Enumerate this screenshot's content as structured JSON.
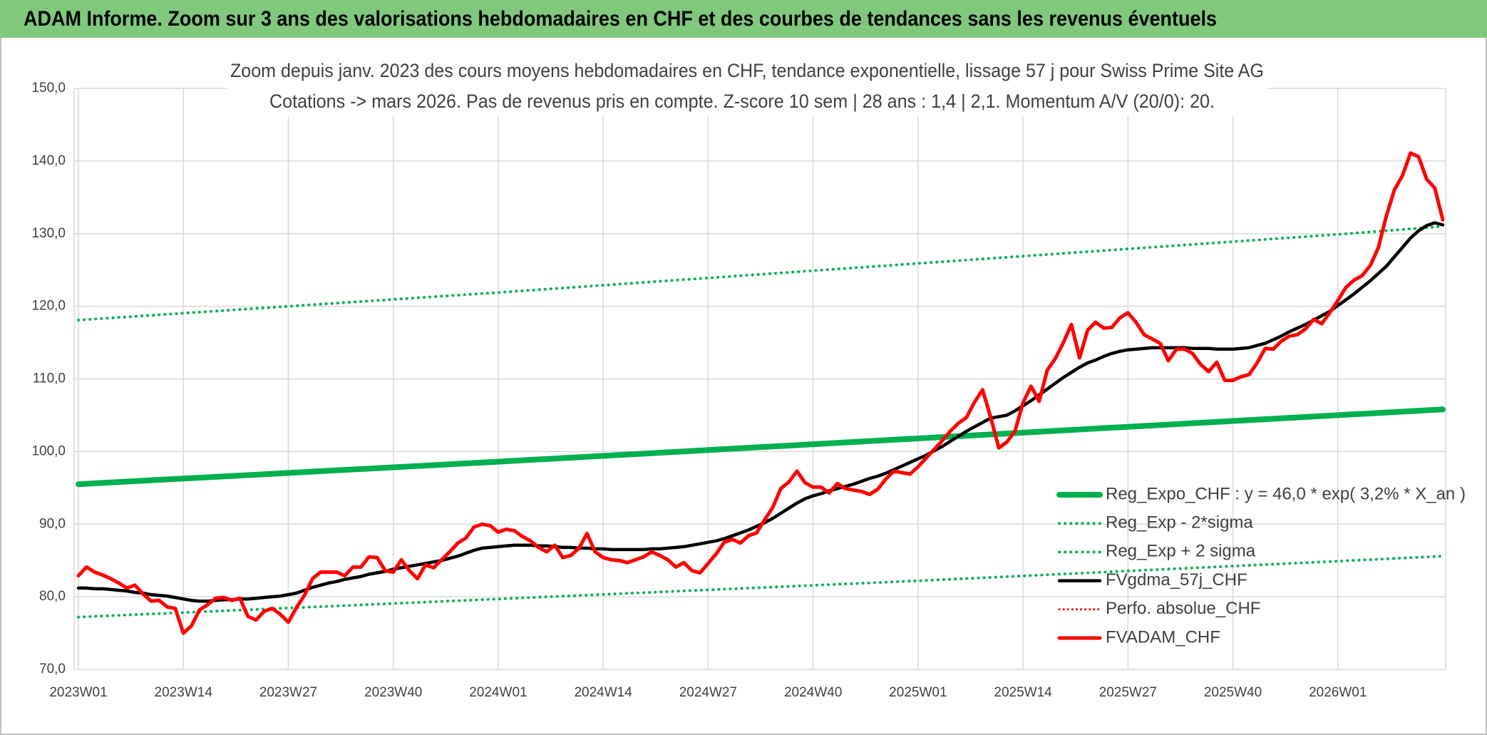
{
  "title": "ADAM Informe. Zoom sur 3 ans des valorisations hebdomadaires en CHF et des courbes de tendances sans les revenus éventuels",
  "chart_data": {
    "type": "line",
    "subtitle": [
      "Zoom depuis janv. 2023 des cours moyens hebdomadaires en CHF, tendance exponentielle, lissage 57 j pour Swiss Prime Site AG",
      "Cotations -> mars 2026. Pas de revenus pris en compte. Z-score 10 sem | 28 ans : 1,4 | 2,1. Momentum A/V (20/0): 20."
    ],
    "categories": [
      "2023W01",
      "2023W02",
      "2023W03",
      "2023W04",
      "2023W05",
      "2023W06",
      "2023W07",
      "2023W08",
      "2023W09",
      "2023W10",
      "2023W11",
      "2023W12",
      "2023W13",
      "2023W14",
      "2023W15",
      "2023W16",
      "2023W17",
      "2023W18",
      "2023W19",
      "2023W20",
      "2023W21",
      "2023W22",
      "2023W23",
      "2023W24",
      "2023W25",
      "2023W26",
      "2023W27",
      "2023W28",
      "2023W29",
      "2023W30",
      "2023W31",
      "2023W32",
      "2023W33",
      "2023W34",
      "2023W35",
      "2023W36",
      "2023W37",
      "2023W38",
      "2023W39",
      "2023W40",
      "2023W41",
      "2023W42",
      "2023W43",
      "2023W44",
      "2023W45",
      "2023W46",
      "2023W47",
      "2023W48",
      "2023W49",
      "2023W50",
      "2023W51",
      "2023W52",
      "2024W01",
      "2024W02",
      "2024W03",
      "2024W04",
      "2024W05",
      "2024W06",
      "2024W07",
      "2024W08",
      "2024W09",
      "2024W10",
      "2024W11",
      "2024W12",
      "2024W13",
      "2024W14",
      "2024W15",
      "2024W16",
      "2024W17",
      "2024W18",
      "2024W19",
      "2024W20",
      "2024W21",
      "2024W22",
      "2024W23",
      "2024W24",
      "2024W25",
      "2024W26",
      "2024W27",
      "2024W28",
      "2024W29",
      "2024W30",
      "2024W31",
      "2024W32",
      "2024W33",
      "2024W34",
      "2024W35",
      "2024W36",
      "2024W37",
      "2024W38",
      "2024W39",
      "2024W40",
      "2024W41",
      "2024W42",
      "2024W43",
      "2024W44",
      "2024W45",
      "2024W46",
      "2024W47",
      "2024W48",
      "2024W49",
      "2024W50",
      "2024W51",
      "2024W52",
      "2025W01",
      "2025W02",
      "2025W03",
      "2025W04",
      "2025W05",
      "2025W06",
      "2025W07",
      "2025W08",
      "2025W09",
      "2025W10",
      "2025W11",
      "2025W12",
      "2025W13",
      "2025W14",
      "2025W15",
      "2025W16",
      "2025W17",
      "2025W18",
      "2025W19",
      "2025W20",
      "2025W21",
      "2025W22",
      "2025W23",
      "2025W24",
      "2025W25",
      "2025W26",
      "2025W27",
      "2025W28",
      "2025W29",
      "2025W30",
      "2025W31",
      "2025W32",
      "2025W33",
      "2025W34",
      "2025W35",
      "2025W36",
      "2025W37",
      "2025W38",
      "2025W39",
      "2025W40",
      "2025W41",
      "2025W42",
      "2025W43",
      "2025W44",
      "2025W45",
      "2025W46",
      "2025W47",
      "2025W48",
      "2025W49",
      "2025W50",
      "2025W51",
      "2025W52",
      "2026W01",
      "2026W02",
      "2026W03",
      "2026W04",
      "2026W05",
      "2026W06",
      "2026W07",
      "2026W08",
      "2026W09",
      "2026W10",
      "2026W11",
      "2026W12",
      "2026W13",
      "2026W14"
    ],
    "xticks": [
      "2023W01",
      "2023W14",
      "2023W27",
      "2023W40",
      "2024W01",
      "2024W14",
      "2024W27",
      "2024W40",
      "2025W01",
      "2025W14",
      "2025W27",
      "2025W40",
      "2026W01"
    ],
    "ylim": [
      70,
      150
    ],
    "yticks": [
      {
        "value": 70,
        "label": "70,0"
      },
      {
        "value": 80,
        "label": "80,0"
      },
      {
        "value": 90,
        "label": "90,0"
      },
      {
        "value": 100,
        "label": "100,0"
      },
      {
        "value": 110,
        "label": "110,0"
      },
      {
        "value": 120,
        "label": "120,0"
      },
      {
        "value": 130,
        "label": "130,0"
      },
      {
        "value": 140,
        "label": "140,0"
      },
      {
        "value": 150,
        "label": "150,0"
      }
    ],
    "grid": true,
    "legend": "lower-right",
    "series": [
      {
        "name": "Reg_Expo_CHF : y = 46,0 * exp( 3,2% *  X_an )",
        "color": "#00b050",
        "width": 8,
        "dotted": false,
        "x": [
          "2023W01",
          "2024W01",
          "2025W01",
          "2026W01",
          "2026W14"
        ],
        "values": [
          95.5,
          98.6,
          101.8,
          105.0,
          105.8
        ]
      },
      {
        "name": "Reg_Exp - 2*sigma",
        "color": "#00b050",
        "width": 4,
        "dotted": true,
        "x": [
          "2023W01",
          "2024W01",
          "2025W01",
          "2026W01",
          "2026W14"
        ],
        "values": [
          77.2,
          79.7,
          82.2,
          84.9,
          85.6
        ]
      },
      {
        "name": "Reg_Exp + 2 sigma",
        "color": "#00b050",
        "width": 4,
        "dotted": true,
        "x": [
          "2023W01",
          "2024W01",
          "2025W01",
          "2026W01",
          "2026W14"
        ],
        "values": [
          118.1,
          121.9,
          125.9,
          129.9,
          131.0
        ]
      },
      {
        "name": "FVgdma_57j_CHF",
        "color": "#000000",
        "width": 4.5,
        "dotted": false,
        "values": [
          81.2,
          81.2,
          81.1,
          81.1,
          81.0,
          80.9,
          80.8,
          80.6,
          80.5,
          80.3,
          80.2,
          80.1,
          79.9,
          79.7,
          79.5,
          79.4,
          79.4,
          79.5,
          79.6,
          79.6,
          79.7,
          79.7,
          79.8,
          79.9,
          80.0,
          80.1,
          80.3,
          80.5,
          80.9,
          81.3,
          81.6,
          81.9,
          82.1,
          82.4,
          82.6,
          82.8,
          83.1,
          83.3,
          83.5,
          83.8,
          84.0,
          84.2,
          84.4,
          84.6,
          84.8,
          85.0,
          85.3,
          85.6,
          86.0,
          86.4,
          86.7,
          86.8,
          86.9,
          87.0,
          87.1,
          87.1,
          87.1,
          87.0,
          87.0,
          86.9,
          86.8,
          86.8,
          86.7,
          86.7,
          86.6,
          86.6,
          86.5,
          86.5,
          86.5,
          86.5,
          86.5,
          86.6,
          86.6,
          86.7,
          86.8,
          86.9,
          87.1,
          87.3,
          87.5,
          87.7,
          88.0,
          88.4,
          88.8,
          89.2,
          89.7,
          90.2,
          90.8,
          91.5,
          92.2,
          92.9,
          93.5,
          93.9,
          94.2,
          94.6,
          94.9,
          95.2,
          95.5,
          95.9,
          96.3,
          96.6,
          97.0,
          97.5,
          98.0,
          98.5,
          99.0,
          99.5,
          100.1,
          100.7,
          101.4,
          102.1,
          102.8,
          103.4,
          104.0,
          104.6,
          104.8,
          105.0,
          105.6,
          106.3,
          107.0,
          107.8,
          108.6,
          109.4,
          110.2,
          110.9,
          111.6,
          112.2,
          112.6,
          113.1,
          113.5,
          113.8,
          114.0,
          114.1,
          114.2,
          114.3,
          114.3,
          114.3,
          114.3,
          114.3,
          114.2,
          114.2,
          114.2,
          114.1,
          114.1,
          114.1,
          114.2,
          114.3,
          114.6,
          114.9,
          115.4,
          115.9,
          116.5,
          117.0,
          117.5,
          118.1,
          118.7,
          119.3,
          120.1,
          120.9,
          121.7,
          122.6,
          123.5,
          124.5,
          125.5,
          126.8,
          128.1,
          129.4,
          130.4,
          131.1,
          131.5,
          131.2
        ]
      },
      {
        "name": "Perfo. absolue_CHF",
        "color": "#ff0000",
        "width": 3,
        "dotted": true
      },
      {
        "name": "FVADAM_CHF",
        "color": "#ff0000",
        "width": 5,
        "dotted": false,
        "values": [
          82.9,
          84.1,
          83.4,
          83.0,
          82.5,
          81.9,
          81.2,
          81.6,
          80.4,
          79.4,
          79.5,
          78.6,
          78.4,
          75.0,
          76.0,
          78.2,
          78.9,
          79.8,
          79.9,
          79.5,
          79.8,
          77.3,
          76.8,
          78.0,
          78.4,
          77.6,
          76.5,
          78.5,
          80.2,
          82.5,
          83.4,
          83.4,
          83.4,
          82.9,
          84.1,
          84.1,
          85.5,
          85.4,
          83.6,
          83.4,
          85.1,
          83.6,
          82.5,
          84.4,
          84.0,
          85.1,
          86.2,
          87.4,
          88.1,
          89.6,
          90.0,
          89.8,
          88.9,
          89.3,
          89.1,
          88.3,
          87.7,
          86.8,
          86.2,
          87.1,
          85.4,
          85.7,
          86.7,
          88.7,
          86.2,
          85.4,
          85.1,
          85.0,
          84.7,
          85.1,
          85.5,
          86.2,
          85.7,
          85.1,
          84.1,
          84.7,
          83.6,
          83.3,
          84.6,
          85.9,
          87.5,
          87.9,
          87.4,
          88.4,
          88.8,
          90.6,
          92.3,
          94.9,
          95.8,
          97.3,
          95.7,
          95.1,
          95.1,
          94.3,
          95.6,
          94.9,
          94.7,
          94.5,
          94.1,
          94.8,
          96.2,
          97.3,
          97.1,
          96.9,
          97.9,
          99.1,
          100.3,
          101.5,
          102.8,
          103.9,
          104.7,
          106.8,
          108.5,
          104.7,
          100.5,
          101.3,
          102.8,
          106.7,
          109.0,
          106.9,
          111.2,
          112.8,
          115.0,
          117.5,
          112.9,
          116.7,
          117.8,
          117.0,
          117.1,
          118.4,
          119.1,
          117.8,
          116.1,
          115.5,
          114.9,
          112.5,
          114.1,
          114.1,
          113.5,
          112.0,
          111.0,
          112.3,
          109.8,
          109.8,
          110.3,
          110.6,
          112.2,
          114.2,
          114.1,
          115.2,
          115.9,
          116.1,
          116.9,
          118.2,
          117.6,
          119.1,
          120.8,
          122.6,
          123.6,
          124.2,
          125.6,
          128.0,
          132.4,
          136.0,
          138.0,
          141.1,
          140.6,
          137.5,
          136.3,
          131.9
        ]
      }
    ]
  }
}
